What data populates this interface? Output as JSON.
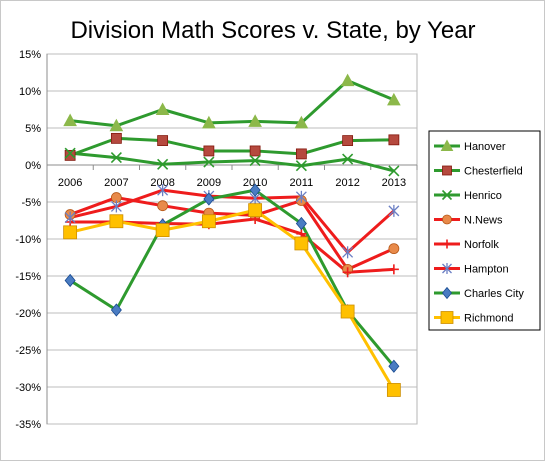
{
  "chart_data": {
    "type": "line",
    "title": "Division Math Scores v. State, by Year",
    "xlabel": "",
    "ylabel": "",
    "categories": [
      "2006",
      "2007",
      "2008",
      "2009",
      "2010",
      "2011",
      "2012",
      "2013"
    ],
    "ylim": [
      -35,
      15
    ],
    "yticks": [
      15,
      10,
      5,
      0,
      -5,
      -10,
      -15,
      -20,
      -25,
      -30,
      -35
    ],
    "ytick_labels": [
      "15%",
      "10%",
      "5%",
      "0%",
      "-5%",
      "-10%",
      "-15%",
      "-20%",
      "-25%",
      "-30%",
      "-35%"
    ],
    "grid": true,
    "legend_position": "right",
    "series": [
      {
        "name": "Hanover",
        "color": "#2e9a2e",
        "marker": "triangle",
        "marker_color": "#8cb84a",
        "values": [
          6.0,
          5.3,
          7.5,
          5.7,
          5.9,
          5.7,
          11.4,
          8.8
        ]
      },
      {
        "name": "Chesterfield",
        "color": "#2e9a2e",
        "marker": "square",
        "marker_color": "#b5493e",
        "values": [
          1.3,
          3.6,
          3.3,
          1.9,
          1.9,
          1.5,
          3.3,
          3.4
        ]
      },
      {
        "name": "Henrico",
        "color": "#2e9a2e",
        "marker": "x",
        "marker_color": "#2e9a2e",
        "values": [
          1.6,
          1.0,
          0.1,
          0.4,
          0.6,
          -0.1,
          0.8,
          -0.8
        ]
      },
      {
        "name": "N.News",
        "color": "#ee1c1c",
        "marker": "circle",
        "marker_color": "#e88a4a",
        "values": [
          -6.7,
          -4.4,
          -5.5,
          -6.5,
          -6.8,
          -4.8,
          -14.1,
          -11.3
        ]
      },
      {
        "name": "Norfolk",
        "color": "#ee1c1c",
        "marker": "plus",
        "marker_color": "#ee1c1c",
        "values": [
          -7.7,
          -7.7,
          -7.9,
          -8.0,
          -7.3,
          -9.3,
          -14.5,
          -14.1
        ]
      },
      {
        "name": "Hampton",
        "color": "#ee1c1c",
        "marker": "star",
        "marker_color": "#6b7fc4",
        "values": [
          -7.1,
          -5.6,
          -3.4,
          -4.2,
          -4.5,
          -4.3,
          -11.8,
          -6.2
        ]
      },
      {
        "name": "Charles City",
        "color": "#2e9a2e",
        "marker": "diamond",
        "marker_color": "#4a7cc2",
        "values": [
          -15.6,
          -19.6,
          -8.1,
          -4.6,
          -3.4,
          -7.9,
          -19.7,
          -27.2
        ]
      },
      {
        "name": "Richmond",
        "color": "#ffc000",
        "marker": "square",
        "marker_color": "#ffc000",
        "values": [
          -9.1,
          -7.6,
          -8.8,
          -7.6,
          -6.1,
          -10.6,
          -19.8,
          -30.4
        ]
      }
    ]
  }
}
